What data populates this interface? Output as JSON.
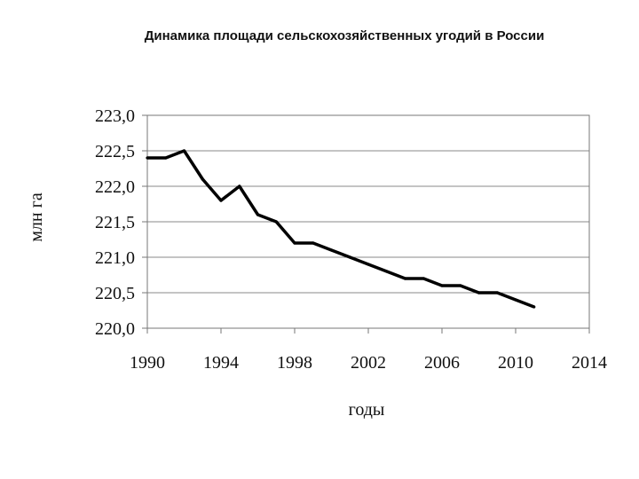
{
  "chart_data": {
    "type": "line",
    "title": "Динамика площади сельскохозяйственных угодий  в России",
    "xlabel": "годы",
    "ylabel": "млн га",
    "xlim": [
      1990,
      2014
    ],
    "ylim": [
      220.0,
      223.0
    ],
    "x_ticks": [
      "1990",
      "1994",
      "1998",
      "2002",
      "2006",
      "2010",
      "2014"
    ],
    "y_ticks": [
      "220,0",
      "220,5",
      "221,0",
      "221,5",
      "222,0",
      "222,5",
      "223,0"
    ],
    "grid": true,
    "series": [
      {
        "x": [
          1990,
          1991,
          1992,
          1993,
          1994,
          1995,
          1996,
          1997,
          1998,
          1999,
          2000,
          2001,
          2002,
          2003,
          2004,
          2005,
          2006,
          2007,
          2008,
          2009,
          2010,
          2011
        ],
        "values": [
          222.4,
          222.4,
          222.5,
          222.1,
          221.8,
          222.0,
          221.6,
          221.5,
          221.2,
          221.2,
          221.1,
          221.0,
          220.9,
          220.8,
          220.7,
          220.7,
          220.6,
          220.6,
          220.5,
          220.5,
          220.4,
          220.3
        ]
      }
    ]
  }
}
